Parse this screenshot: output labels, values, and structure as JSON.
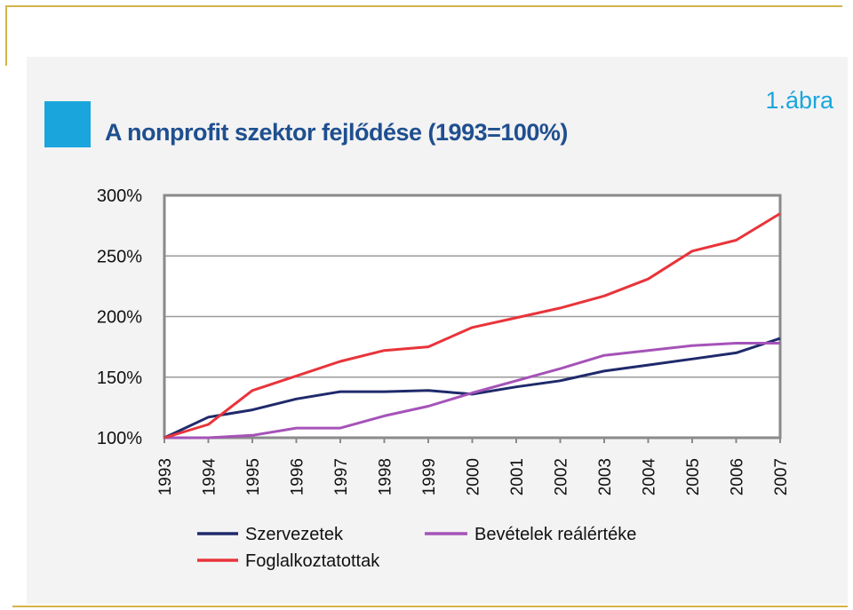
{
  "figure_label": "1.ábra",
  "chart_data": {
    "type": "line",
    "title": "A nonprofit szektor fejlődése (1993=100%)",
    "xlabel": "",
    "ylabel": "",
    "x": [
      "1993",
      "1994",
      "1995",
      "1996",
      "1997",
      "1998",
      "1999",
      "2000",
      "2001",
      "2002",
      "2003",
      "2004",
      "2005",
      "2006",
      "2007"
    ],
    "ylim": [
      100,
      300
    ],
    "yticks": [
      100,
      150,
      200,
      250,
      300
    ],
    "ytick_labels": [
      "100%",
      "150%",
      "200%",
      "250%",
      "300%"
    ],
    "grid": true,
    "legend_position": "bottom",
    "series": [
      {
        "name": "Szervezetek",
        "color": "#1f2a6b",
        "values": [
          100,
          117,
          123,
          132,
          138,
          138,
          139,
          136,
          142,
          147,
          155,
          160,
          165,
          170,
          182
        ]
      },
      {
        "name": "Bevételek reálértéke",
        "color": "#a553b8",
        "values": [
          100,
          100,
          102,
          108,
          108,
          118,
          126,
          137,
          147,
          157,
          168,
          172,
          176,
          178,
          178
        ]
      },
      {
        "name": "Foglalkoztatottak",
        "color": "#e8343a",
        "values": [
          100,
          111,
          139,
          151,
          163,
          172,
          175,
          191,
          199,
          207,
          217,
          231,
          254,
          263,
          285
        ]
      }
    ]
  }
}
